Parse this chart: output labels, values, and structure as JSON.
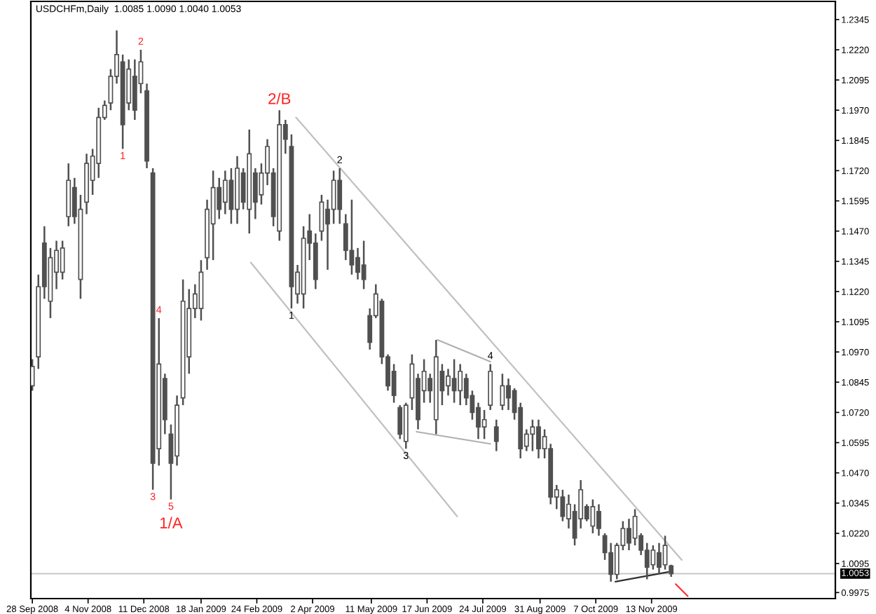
{
  "chart_data": {
    "type": "candlestick",
    "title": "USDCHFm,Daily  1.0085 1.0090 1.0040 1.0053",
    "series": [
      {
        "color": "#505050",
        "x": [
          "2008-09-28",
          "2008-10-02",
          "2008-10-06",
          "2008-10-10",
          "2008-10-14",
          "2008-10-18",
          "2008-10-22",
          "2008-10-26",
          "2008-10-30",
          "2008-11-03",
          "2008-11-07",
          "2008-11-11",
          "2008-11-15",
          "2008-11-19",
          "2008-11-23",
          "2008-11-27",
          "2008-12-01",
          "2008-12-05",
          "2008-12-09",
          "2008-12-13",
          "2008-12-17",
          "2008-12-21",
          "2008-12-25",
          "2008-12-29",
          "2009-01-02",
          "2009-01-06",
          "2009-01-10",
          "2009-01-14",
          "2009-01-18",
          "2009-01-22",
          "2009-01-26",
          "2009-01-30",
          "2009-02-03",
          "2009-02-07",
          "2009-02-11",
          "2009-02-15",
          "2009-02-19",
          "2009-02-23",
          "2009-02-27",
          "2009-03-03",
          "2009-03-07",
          "2009-03-11",
          "2009-03-15",
          "2009-03-19",
          "2009-03-23",
          "2009-03-27",
          "2009-03-31",
          "2009-04-04",
          "2009-04-08",
          "2009-04-12",
          "2009-04-16",
          "2009-04-20",
          "2009-04-24",
          "2009-04-28",
          "2009-05-02",
          "2009-05-06",
          "2009-05-10",
          "2009-05-14",
          "2009-05-18",
          "2009-05-22",
          "2009-05-26",
          "2009-05-30",
          "2009-06-03",
          "2009-06-07",
          "2009-06-11",
          "2009-06-15",
          "2009-06-19",
          "2009-06-23",
          "2009-06-27",
          "2009-07-01",
          "2009-07-05",
          "2009-07-09",
          "2009-07-13",
          "2009-07-17",
          "2009-07-21",
          "2009-07-25",
          "2009-07-29",
          "2009-08-02",
          "2009-08-06",
          "2009-08-10",
          "2009-08-14",
          "2009-08-18",
          "2009-08-22",
          "2009-08-26",
          "2009-08-30",
          "2009-09-03",
          "2009-09-07",
          "2009-09-11",
          "2009-09-15",
          "2009-09-19",
          "2009-09-23",
          "2009-09-27",
          "2009-10-01",
          "2009-10-05",
          "2009-10-09",
          "2009-10-13",
          "2009-10-17",
          "2009-10-21",
          "2009-10-25",
          "2009-10-29",
          "2009-11-02",
          "2009-11-06",
          "2009-11-10",
          "2009-11-14",
          "2009-11-18",
          "2009-11-22",
          "2009-11-26"
        ],
        "ohlc": [
          [
            1.083,
            1.094,
            1.081,
            1.091
          ],
          [
            1.095,
            1.129,
            1.09,
            1.124
          ],
          [
            1.142,
            1.149,
            1.119,
            1.124
          ],
          [
            1.118,
            1.14,
            1.111,
            1.136
          ],
          [
            1.13,
            1.143,
            1.123,
            1.139
          ],
          [
            1.13,
            1.143,
            1.127,
            1.14
          ],
          [
            1.153,
            1.175,
            1.149,
            1.168
          ],
          [
            1.165,
            1.169,
            1.15,
            1.153
          ],
          [
            1.127,
            1.162,
            1.119,
            1.156
          ],
          [
            1.159,
            1.179,
            1.154,
            1.175
          ],
          [
            1.168,
            1.181,
            1.162,
            1.178
          ],
          [
            1.175,
            1.198,
            1.169,
            1.194
          ],
          [
            1.194,
            1.201,
            1.193,
            1.199
          ],
          [
            1.2,
            1.214,
            1.197,
            1.211
          ],
          [
            1.211,
            1.23,
            1.208,
            1.22
          ],
          [
            1.217,
            1.22,
            1.181,
            1.191
          ],
          [
            1.2,
            1.218,
            1.197,
            1.214
          ],
          [
            1.211,
            1.218,
            1.193,
            1.197
          ],
          [
            1.208,
            1.222,
            1.204,
            1.217
          ],
          [
            1.205,
            1.208,
            1.173,
            1.176
          ],
          [
            1.171,
            1.173,
            1.04,
            1.051
          ],
          [
            1.057,
            1.111,
            1.05,
            1.092
          ],
          [
            1.086,
            1.088,
            1.063,
            1.069
          ],
          [
            1.063,
            1.067,
            1.036,
            1.051
          ],
          [
            1.054,
            1.079,
            1.05,
            1.075
          ],
          [
            1.078,
            1.127,
            1.075,
            1.118
          ],
          [
            1.095,
            1.123,
            1.088,
            1.115
          ],
          [
            1.115,
            1.125,
            1.111,
            1.121
          ],
          [
            1.115,
            1.135,
            1.11,
            1.13
          ],
          [
            1.136,
            1.16,
            1.131,
            1.156
          ],
          [
            1.15,
            1.172,
            1.135,
            1.165
          ],
          [
            1.165,
            1.169,
            1.152,
            1.156
          ],
          [
            1.159,
            1.172,
            1.154,
            1.168
          ],
          [
            1.168,
            1.173,
            1.15,
            1.156
          ],
          [
            1.156,
            1.178,
            1.15,
            1.173
          ],
          [
            1.171,
            1.173,
            1.156,
            1.159
          ],
          [
            1.156,
            1.189,
            1.146,
            1.179
          ],
          [
            1.171,
            1.173,
            1.152,
            1.159
          ],
          [
            1.162,
            1.175,
            1.158,
            1.171
          ],
          [
            1.171,
            1.185,
            1.166,
            1.182
          ],
          [
            1.171,
            1.173,
            1.149,
            1.153
          ],
          [
            1.147,
            1.197,
            1.143,
            1.191
          ],
          [
            1.191,
            1.193,
            1.179,
            1.185
          ],
          [
            1.182,
            1.187,
            1.115,
            1.124
          ],
          [
            1.121,
            1.133,
            1.117,
            1.13
          ],
          [
            1.121,
            1.149,
            1.115,
            1.144
          ],
          [
            1.147,
            1.154,
            1.135,
            1.142
          ],
          [
            1.142,
            1.146,
            1.123,
            1.127
          ],
          [
            1.147,
            1.162,
            1.143,
            1.159
          ],
          [
            1.156,
            1.16,
            1.131,
            1.15
          ],
          [
            1.156,
            1.172,
            1.15,
            1.168
          ],
          [
            1.168,
            1.173,
            1.15,
            1.156
          ],
          [
            1.15,
            1.154,
            1.135,
            1.139
          ],
          [
            1.139,
            1.16,
            1.129,
            1.133
          ],
          [
            1.136,
            1.14,
            1.127,
            1.13
          ],
          [
            1.133,
            1.143,
            1.123,
            1.127
          ],
          [
            1.112,
            1.115,
            1.098,
            1.101
          ],
          [
            1.112,
            1.125,
            1.111,
            1.121
          ],
          [
            1.118,
            1.119,
            1.092,
            1.095
          ],
          [
            1.095,
            1.096,
            1.081,
            1.083
          ],
          [
            1.089,
            1.092,
            1.076,
            1.079
          ],
          [
            1.074,
            1.075,
            1.061,
            1.063
          ],
          [
            1.06,
            1.076,
            1.057,
            1.075
          ],
          [
            1.078,
            1.096,
            1.073,
            1.092
          ],
          [
            1.086,
            1.088,
            1.065,
            1.069
          ],
          [
            1.081,
            1.094,
            1.076,
            1.089
          ],
          [
            1.086,
            1.088,
            1.076,
            1.081
          ],
          [
            1.069,
            1.102,
            1.063,
            1.095
          ],
          [
            1.089,
            1.092,
            1.075,
            1.081
          ],
          [
            1.083,
            1.09,
            1.079,
            1.087
          ],
          [
            1.086,
            1.094,
            1.076,
            1.081
          ],
          [
            1.081,
            1.092,
            1.075,
            1.089
          ],
          [
            1.086,
            1.088,
            1.075,
            1.078
          ],
          [
            1.079,
            1.081,
            1.069,
            1.072
          ],
          [
            1.074,
            1.076,
            1.061,
            1.066
          ],
          [
            1.066,
            1.073,
            1.061,
            1.069
          ],
          [
            1.075,
            1.092,
            1.073,
            1.089
          ],
          [
            1.066,
            1.069,
            1.056,
            1.06
          ],
          [
            1.075,
            1.088,
            1.073,
            1.083
          ],
          [
            1.083,
            1.086,
            1.073,
            1.078
          ],
          [
            1.081,
            1.082,
            1.069,
            1.072
          ],
          [
            1.074,
            1.076,
            1.053,
            1.057
          ],
          [
            1.058,
            1.065,
            1.056,
            1.063
          ],
          [
            1.063,
            1.069,
            1.056,
            1.066
          ],
          [
            1.066,
            1.069,
            1.053,
            1.057
          ],
          [
            1.057,
            1.065,
            1.053,
            1.062
          ],
          [
            1.057,
            1.059,
            1.034,
            1.037
          ],
          [
            1.037,
            1.042,
            1.032,
            1.04
          ],
          [
            1.037,
            1.04,
            1.027,
            1.029
          ],
          [
            1.028,
            1.038,
            1.024,
            1.034
          ],
          [
            1.031,
            1.034,
            1.017,
            1.02
          ],
          [
            1.028,
            1.044,
            1.024,
            1.04
          ],
          [
            1.033,
            1.034,
            1.027,
            1.028
          ],
          [
            1.025,
            1.036,
            1.022,
            1.033
          ],
          [
            1.031,
            1.034,
            1.021,
            1.024
          ],
          [
            1.021,
            1.022,
            1.011,
            1.014
          ],
          [
            1.014,
            1.018,
            1.002,
            1.005
          ],
          [
            1.005,
            1.018,
            1.003,
            1.017
          ],
          [
            1.017,
            1.027,
            1.015,
            1.024
          ],
          [
            1.024,
            1.028,
            1.015,
            1.018
          ],
          [
            1.02,
            1.032,
            1.017,
            1.029
          ],
          [
            1.021,
            1.022,
            1.013,
            1.015
          ],
          [
            1.015,
            1.018,
            1.003,
            1.008
          ],
          [
            1.009,
            1.017,
            1.007,
            1.015
          ],
          [
            1.014,
            1.018,
            1.005,
            1.008
          ],
          [
            1.009,
            1.021,
            1.007,
            1.017
          ],
          [
            1.0085,
            1.009,
            1.004,
            1.0053
          ]
        ]
      },
      {
        "type": "line",
        "color": "#c0c0c0",
        "x": [
          "2009-03-22",
          "2009-12-03"
        ],
        "values": [
          1.194,
          1.011
        ]
      },
      {
        "type": "line",
        "color": "#c0c0c0",
        "x": [
          "2009-02-20",
          "2009-07-07"
        ],
        "values": [
          1.134,
          1.029
        ]
      },
      {
        "type": "line",
        "color": "#b0b0b0",
        "x": [
          "2009-06-24",
          "2009-07-29"
        ],
        "values": [
          1.102,
          1.093
        ]
      },
      {
        "type": "line",
        "color": "#b0b0b0",
        "x": [
          "2009-06-10",
          "2009-07-29"
        ],
        "values": [
          1.064,
          1.059
        ]
      },
      {
        "type": "line",
        "color": "#303030",
        "x": [
          "2009-10-20",
          "2009-11-24"
        ],
        "values": [
          1.002,
          1.006
        ]
      },
      {
        "type": "line",
        "color": "#ff3030",
        "x": [
          "2009-11-29",
          "2009-12-07"
        ],
        "values": [
          1.001,
          0.996
        ]
      }
    ],
    "xlim": [
      "2008-09-27",
      "2010-03-15"
    ],
    "xticks": [
      {
        "value": "2008-09-28",
        "label": "28 Sep 2008"
      },
      {
        "value": "2008-11-04",
        "label": "4 Nov 2008"
      },
      {
        "value": "2008-12-11",
        "label": "11 Dec 2008"
      },
      {
        "value": "2009-01-18",
        "label": "18 Jan 2009"
      },
      {
        "value": "2009-02-24",
        "label": "24 Feb 2009"
      },
      {
        "value": "2009-04-02",
        "label": "2 Apr 2009"
      },
      {
        "value": "2009-05-11",
        "label": "11 May 2009"
      },
      {
        "value": "2009-06-17",
        "label": "17 Jun 2009"
      },
      {
        "value": "2009-07-24",
        "label": "24 Jul 2009"
      },
      {
        "value": "2009-08-31",
        "label": "31 Aug 2009"
      },
      {
        "value": "2009-10-07",
        "label": "7 Oct 2009"
      },
      {
        "value": "2009-11-13",
        "label": "13 Nov 2009"
      }
    ],
    "ylim": [
      0.995,
      1.242
    ],
    "yticks": [
      1.2345,
      {
        "value": 1.222,
        "label": "1.2220"
      },
      1.2095,
      {
        "value": 1.197,
        "label": "1.1970"
      },
      1.1845,
      {
        "value": 1.172,
        "label": "1.1720"
      },
      1.1595,
      {
        "value": 1.147,
        "label": "1.1470"
      },
      1.1345,
      {
        "value": 1.122,
        "label": "1.1220"
      },
      1.1095,
      {
        "value": 1.097,
        "label": "1.0970"
      },
      1.0845,
      {
        "value": 1.072,
        "label": "1.0720"
      },
      1.0595,
      {
        "value": 1.047,
        "label": "1.0470"
      },
      1.0345,
      {
        "value": 1.022,
        "label": "1.0220"
      },
      1.0095,
      0.9975
    ],
    "ref_lines": [
      {
        "axis": "y",
        "value": 1.0053,
        "label": "1.0053",
        "color": "#c8c8c8"
      }
    ],
    "annotations": [
      {
        "text": "2",
        "x": "2008-12-09",
        "y": 1.222
      },
      {
        "text": "1",
        "x": "2008-11-27",
        "y": 1.181
      },
      {
        "text": "2/B",
        "x": "2009-03-11",
        "y": 1.197
      },
      {
        "text": "4",
        "x": "2008-12-21",
        "y": 1.111
      },
      {
        "text": "3",
        "x": "2008-12-17",
        "y": 1.04
      },
      {
        "text": "5",
        "x": "2008-12-29",
        "y": 1.036
      },
      {
        "text": "1/A",
        "x": "2008-12-29",
        "y": 1.036
      },
      {
        "text": "2",
        "x": "2009-04-20",
        "y": 1.173
      },
      {
        "text": "1",
        "x": "2009-03-19",
        "y": 1.115
      },
      {
        "text": "3",
        "x": "2009-06-03",
        "y": 1.057
      },
      {
        "text": "4",
        "x": "2009-07-29",
        "y": 1.092
      }
    ]
  }
}
